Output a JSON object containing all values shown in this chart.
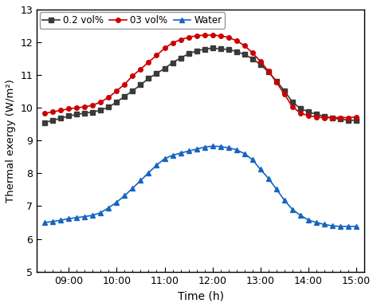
{
  "xlabel": "Time (h)",
  "ylabel": "Thermal exergy (W/m²)",
  "ylim": [
    5,
    13
  ],
  "yticks": [
    5,
    6,
    7,
    8,
    9,
    10,
    11,
    12,
    13
  ],
  "xtick_labels": [
    "09:00",
    "10:00",
    "11:00",
    "12:00",
    "13:00",
    "14:00",
    "15:00"
  ],
  "xtick_positions": [
    60,
    120,
    180,
    240,
    300,
    360,
    420
  ],
  "xlim": [
    20,
    430
  ],
  "time_minutes": [
    30,
    40,
    50,
    60,
    70,
    80,
    90,
    100,
    110,
    120,
    130,
    140,
    150,
    160,
    170,
    180,
    190,
    200,
    210,
    220,
    230,
    240,
    250,
    260,
    270,
    280,
    290,
    300,
    310,
    320,
    330,
    340,
    350,
    360,
    370,
    380,
    390,
    400,
    410,
    420
  ],
  "series_black": {
    "label": "0.2 vol%",
    "color": "#3a3a3a",
    "marker": "s",
    "markersize": 4.0,
    "values": [
      9.55,
      9.62,
      9.68,
      9.75,
      9.8,
      9.84,
      9.87,
      9.93,
      10.02,
      10.18,
      10.35,
      10.52,
      10.7,
      10.9,
      11.05,
      11.2,
      11.38,
      11.52,
      11.65,
      11.74,
      11.79,
      11.82,
      11.8,
      11.78,
      11.72,
      11.63,
      11.5,
      11.32,
      11.1,
      10.82,
      10.52,
      10.18,
      9.98,
      9.88,
      9.8,
      9.74,
      9.68,
      9.66,
      9.62,
      9.62
    ]
  },
  "series_red": {
    "label": "03 vol%",
    "color": "#cc0000",
    "marker": "o",
    "markersize": 4.0,
    "values": [
      9.83,
      9.88,
      9.92,
      9.97,
      10.0,
      10.03,
      10.08,
      10.18,
      10.32,
      10.52,
      10.72,
      10.98,
      11.18,
      11.4,
      11.6,
      11.82,
      11.98,
      12.08,
      12.15,
      12.2,
      12.22,
      12.22,
      12.2,
      12.15,
      12.05,
      11.9,
      11.68,
      11.42,
      11.12,
      10.78,
      10.42,
      10.04,
      9.84,
      9.76,
      9.72,
      9.7,
      9.7,
      9.7,
      9.7,
      9.72
    ]
  },
  "series_blue": {
    "label": "Water",
    "color": "#1565c0",
    "marker": "^",
    "markersize": 4.5,
    "values": [
      6.5,
      6.53,
      6.57,
      6.62,
      6.65,
      6.68,
      6.72,
      6.8,
      6.95,
      7.12,
      7.32,
      7.55,
      7.78,
      8.02,
      8.25,
      8.45,
      8.55,
      8.62,
      8.68,
      8.74,
      8.8,
      8.83,
      8.82,
      8.78,
      8.72,
      8.6,
      8.42,
      8.12,
      7.85,
      7.52,
      7.18,
      6.9,
      6.72,
      6.58,
      6.5,
      6.44,
      6.4,
      6.38,
      6.38,
      6.38
    ]
  },
  "background_color": "#ffffff",
  "spine_color": "#000000",
  "linewidth": 1.2,
  "figure_width": 4.73,
  "figure_height": 3.85,
  "dpi": 100
}
